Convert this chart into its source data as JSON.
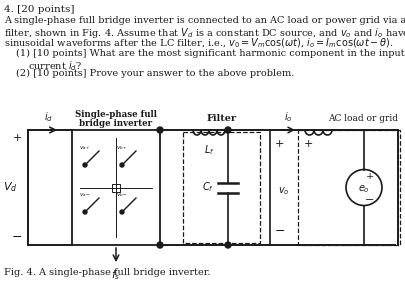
{
  "title_num": "4. [20 points]",
  "line1": "A single-phase full bridge inverter is connected to an AC load or power grid via a LC",
  "line2": "filter, shown in Fig. 4. Assume that $V_d$ is a constant DC source, and $v_o$ and $i_o$ have pure",
  "line3": "sinusoidal waveforms after the LC filter, i.e., $v_0 = V_m\\cos(\\omega t)$, $i_o = I_m\\cos(\\omega t - \\theta)$.",
  "q1a": "(1) [10 points] What are the most significant harmonic component in the input DC",
  "q1b": "current $i_d$?",
  "q2": "(2) [10 points] Prove your answer to the above problem.",
  "fig_caption": "Fig. 4. A single-phase full bridge inverter.",
  "label_inverter": "Single-phase full\nbridge inverter",
  "label_filter": "Filter",
  "label_ac": "AC load or grid",
  "label_id": "$i_d$",
  "label_io": "$i_o$",
  "label_Vd": "$V_d$",
  "label_vo": "$v_o$",
  "label_Lf": "$L_f$",
  "label_Cf": "$C_f$",
  "label_eo": "$e_o$",
  "label_fs": "$f_s$",
  "bg_color": "#ffffff",
  "text_color": "#1a1a1a",
  "line_color": "#1a1a1a",
  "fig_w": 4.05,
  "fig_h": 3.07
}
